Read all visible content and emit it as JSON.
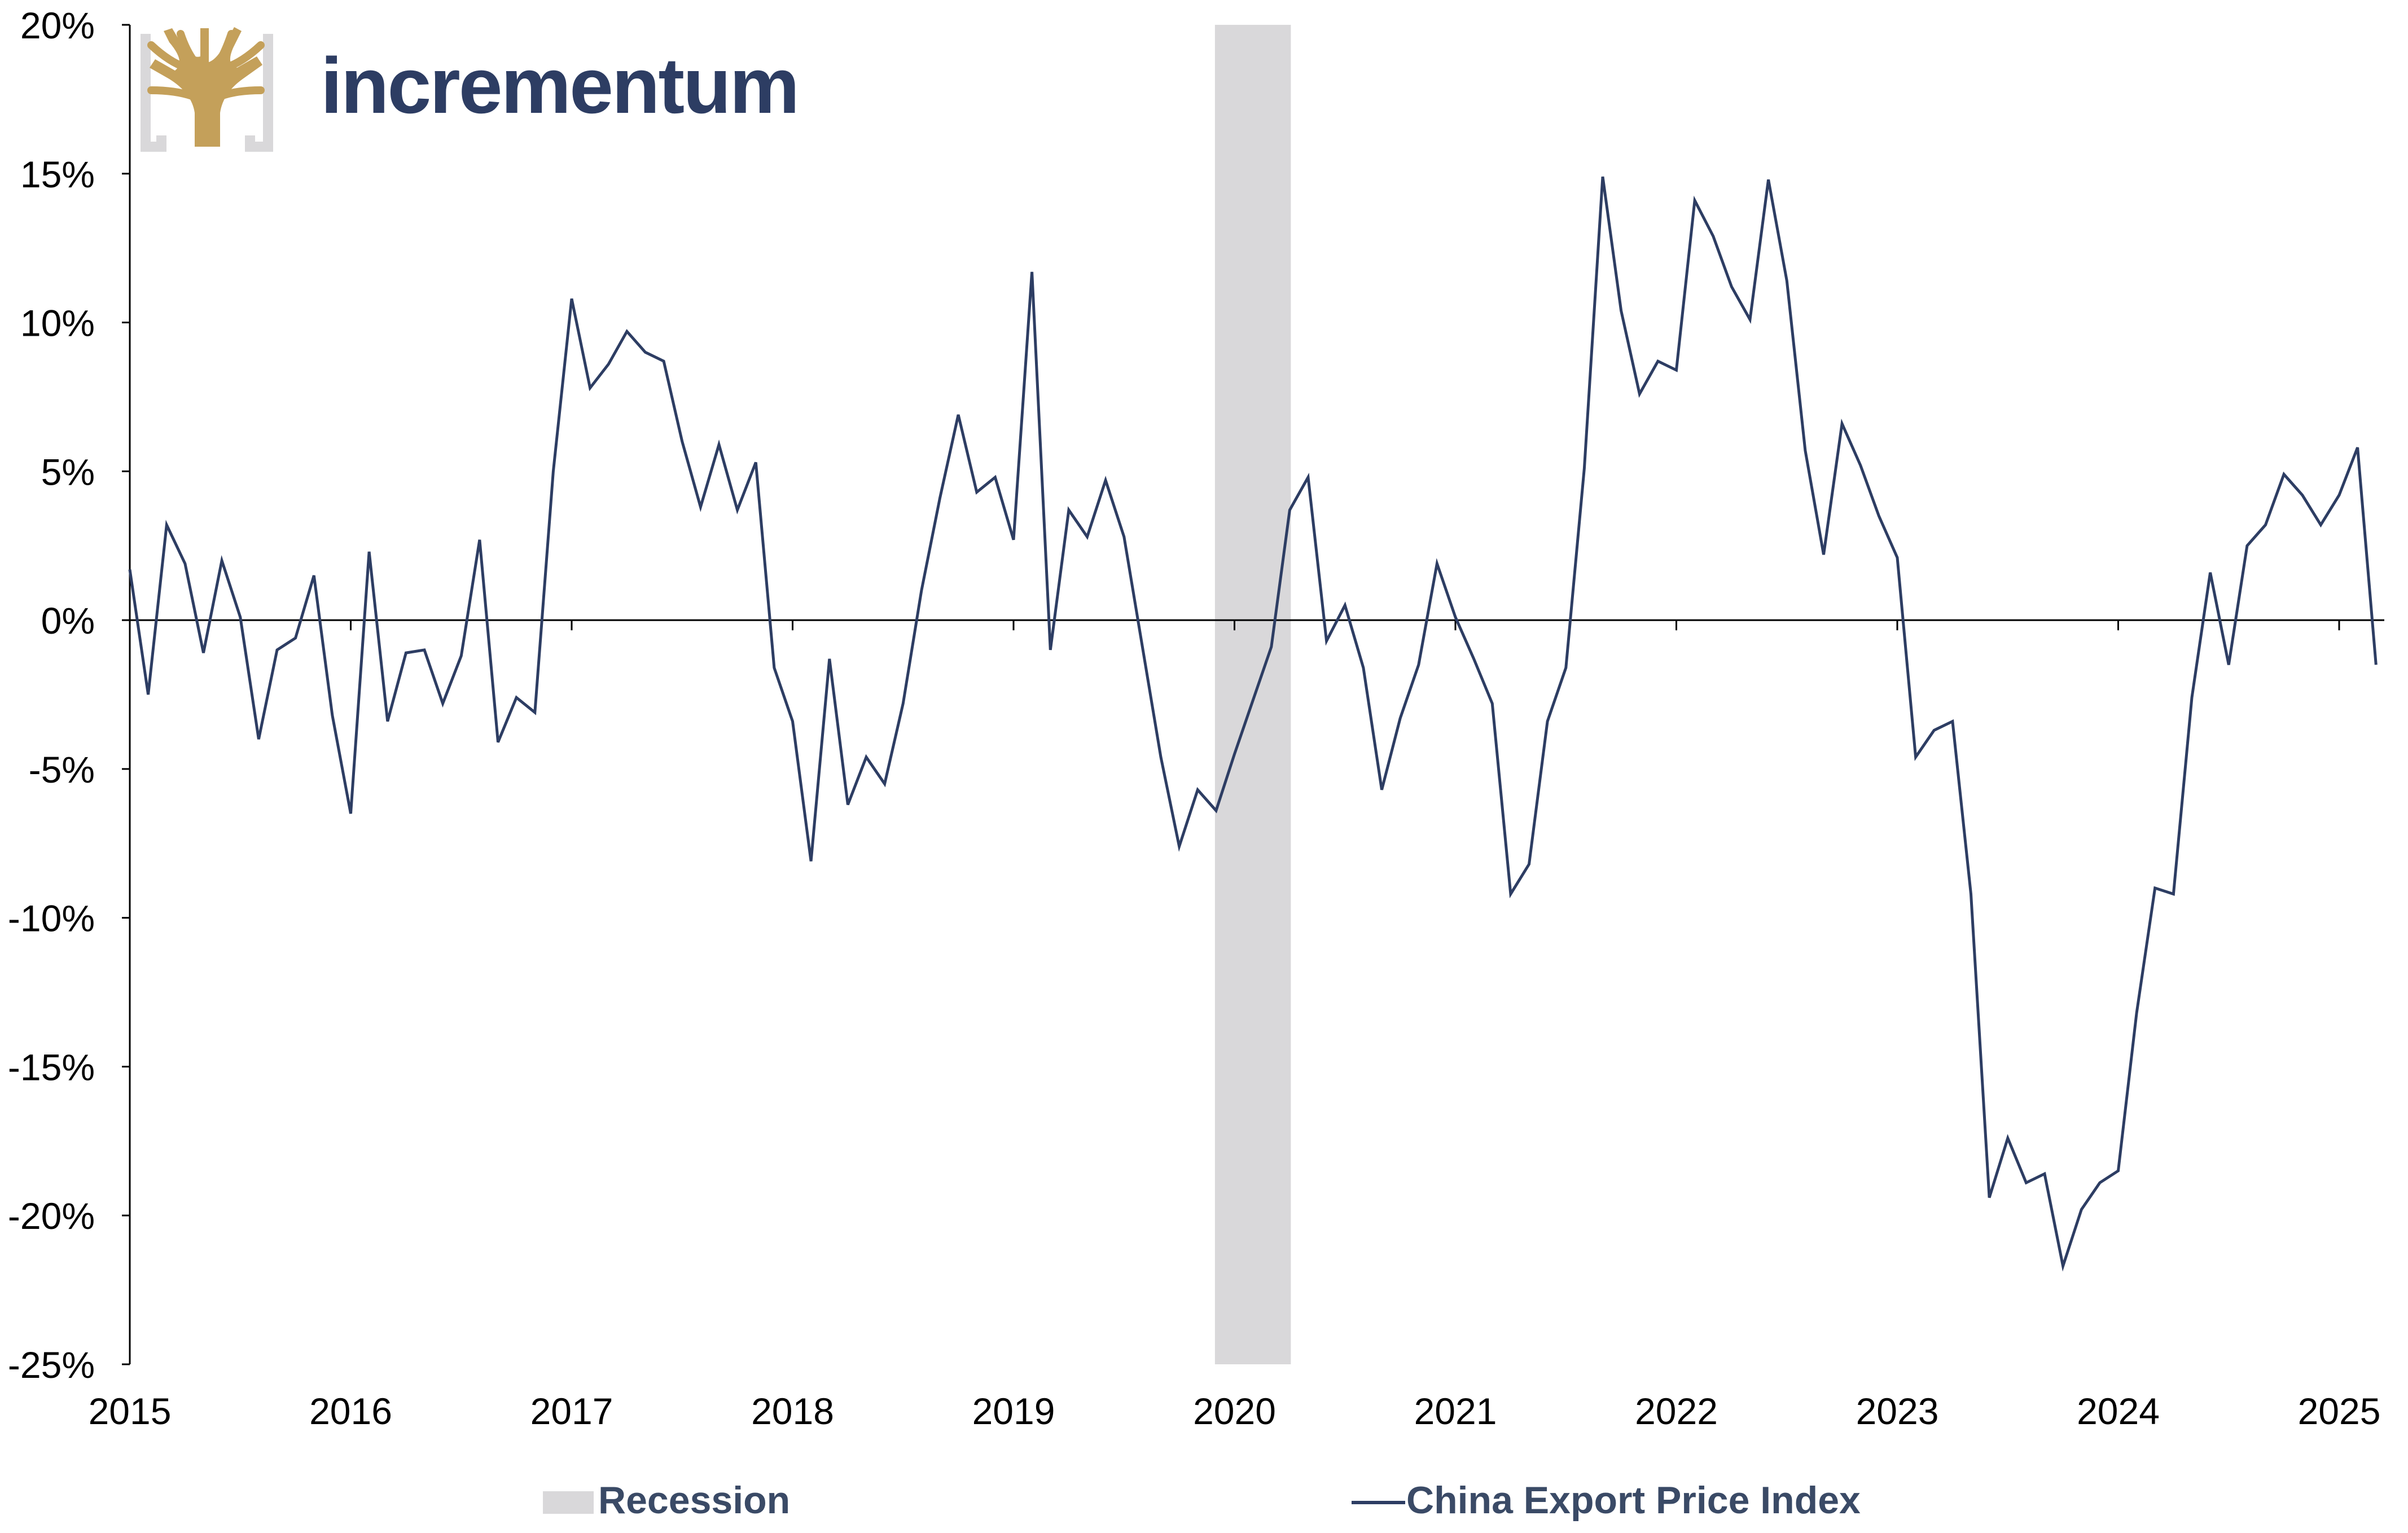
{
  "logo": {
    "name": "incrementum",
    "brand_text_color": "#2d3d63",
    "mark_color": "#c4a05a",
    "mark_frame_color": "#d9d8da",
    "icon": "tree-logo-icon"
  },
  "chart_data": {
    "type": "line",
    "title": "",
    "xlabel": "",
    "ylabel": "",
    "ylim": [
      -25,
      20
    ],
    "xlim": [
      "2015-01",
      "2025-03"
    ],
    "y_ticks": [
      -25,
      -20,
      -15,
      -10,
      -5,
      0,
      5,
      10,
      15,
      20
    ],
    "y_tick_labels": [
      "-25%",
      "-20%",
      "-15%",
      "-10%",
      "-5%",
      "0%",
      "5%",
      "10%",
      "15%",
      "20%"
    ],
    "x_ticks": [
      "2015-01",
      "2016-01",
      "2017-01",
      "2018-01",
      "2019-01",
      "2020-01",
      "2021-01",
      "2022-01",
      "2023-01",
      "2024-01",
      "2025-01"
    ],
    "x_tick_labels": [
      "2015",
      "2016",
      "2017",
      "2018",
      "2019",
      "2020",
      "2021",
      "2022",
      "2023",
      "2024",
      "2025"
    ],
    "grid": false,
    "zero_line": true,
    "legend_position": "bottom",
    "colors": {
      "line": "#2d3d63",
      "recession": "#d9d8da",
      "axis": "#000000",
      "legend_text": "#3a4a66"
    },
    "recessions": [
      {
        "name": "Recession",
        "start": "2019-12",
        "end": "2020-04"
      }
    ],
    "series": [
      {
        "name": "China Export Price Index",
        "x": [
          "2015-01",
          "2015-02",
          "2015-03",
          "2015-04",
          "2015-05",
          "2015-06",
          "2015-07",
          "2015-08",
          "2015-09",
          "2015-10",
          "2015-11",
          "2015-12",
          "2016-01",
          "2016-02",
          "2016-03",
          "2016-04",
          "2016-05",
          "2016-06",
          "2016-07",
          "2016-08",
          "2016-09",
          "2016-10",
          "2016-11",
          "2016-12",
          "2017-01",
          "2017-02",
          "2017-03",
          "2017-04",
          "2017-05",
          "2017-06",
          "2017-07",
          "2017-08",
          "2017-09",
          "2017-10",
          "2017-11",
          "2017-12",
          "2018-01",
          "2018-02",
          "2018-03",
          "2018-04",
          "2018-05",
          "2018-06",
          "2018-07",
          "2018-08",
          "2018-09",
          "2018-10",
          "2018-11",
          "2018-12",
          "2019-01",
          "2019-02",
          "2019-03",
          "2019-04",
          "2019-05",
          "2019-06",
          "2019-07",
          "2019-08",
          "2019-09",
          "2019-10",
          "2019-11",
          "2019-12",
          "2020-01",
          "2020-02",
          "2020-03",
          "2020-04",
          "2020-05",
          "2020-06",
          "2020-07",
          "2020-08",
          "2020-09",
          "2020-10",
          "2020-11",
          "2020-12",
          "2021-01",
          "2021-02",
          "2021-03",
          "2021-04",
          "2021-05",
          "2021-06",
          "2021-07",
          "2021-08",
          "2021-09",
          "2021-10",
          "2021-11",
          "2021-12",
          "2022-01",
          "2022-02",
          "2022-03",
          "2022-04",
          "2022-05",
          "2022-06",
          "2022-07",
          "2022-08",
          "2022-09",
          "2022-10",
          "2022-11",
          "2022-12",
          "2023-01",
          "2023-02",
          "2023-03",
          "2023-04",
          "2023-05",
          "2023-06",
          "2023-07",
          "2023-08",
          "2023-09",
          "2023-10",
          "2023-11",
          "2023-12",
          "2024-01",
          "2024-02",
          "2024-03",
          "2024-04",
          "2024-05",
          "2024-06",
          "2024-07",
          "2024-08",
          "2024-09",
          "2024-10",
          "2024-11",
          "2024-12",
          "2025-01",
          "2025-02",
          "2025-03"
        ],
        "values": [
          1.7,
          -2.5,
          3.2,
          1.9,
          -1.1,
          2.0,
          0.1,
          -4.0,
          -1.0,
          -0.6,
          1.5,
          -3.2,
          -6.5,
          2.3,
          -3.4,
          -1.1,
          -1.0,
          -2.8,
          -1.2,
          2.7,
          -4.1,
          -2.6,
          -3.1,
          5.0,
          10.8,
          7.8,
          8.6,
          9.7,
          9.0,
          8.7,
          6.0,
          3.8,
          5.9,
          3.7,
          5.3,
          -1.6,
          -3.4,
          -8.1,
          -1.3,
          -6.2,
          -4.6,
          -5.5,
          -2.8,
          1.0,
          4.1,
          6.9,
          4.3,
          4.8,
          2.7,
          11.7,
          -1.0,
          3.7,
          2.8,
          4.7,
          2.8,
          -0.9,
          -4.6,
          -7.6,
          -5.7,
          -6.4,
          -4.5,
          -2.7,
          -0.9,
          3.7,
          4.8,
          -0.7,
          0.5,
          -1.6,
          -5.7,
          -3.3,
          -1.5,
          1.9,
          0.1,
          -1.3,
          -2.8,
          -9.2,
          -8.2,
          -3.4,
          -1.6,
          5.1,
          14.9,
          10.4,
          7.6,
          8.7,
          8.4,
          14.1,
          12.9,
          11.2,
          10.1,
          14.8,
          11.4,
          5.7,
          2.2,
          6.6,
          5.2,
          3.5,
          2.1,
          -4.6,
          -3.7,
          -3.4,
          -9.2,
          -19.4,
          -17.4,
          -18.9,
          -18.6,
          -21.7,
          -19.8,
          -18.9,
          -18.5,
          -13.2,
          -9.0,
          -9.2,
          -2.6,
          1.6,
          -1.5,
          2.5,
          3.2,
          4.9,
          4.2,
          3.2,
          4.2,
          5.8,
          -1.5
        ]
      }
    ]
  },
  "legend": {
    "recession_label": "Recession",
    "series_label": "China Export Price Index"
  }
}
